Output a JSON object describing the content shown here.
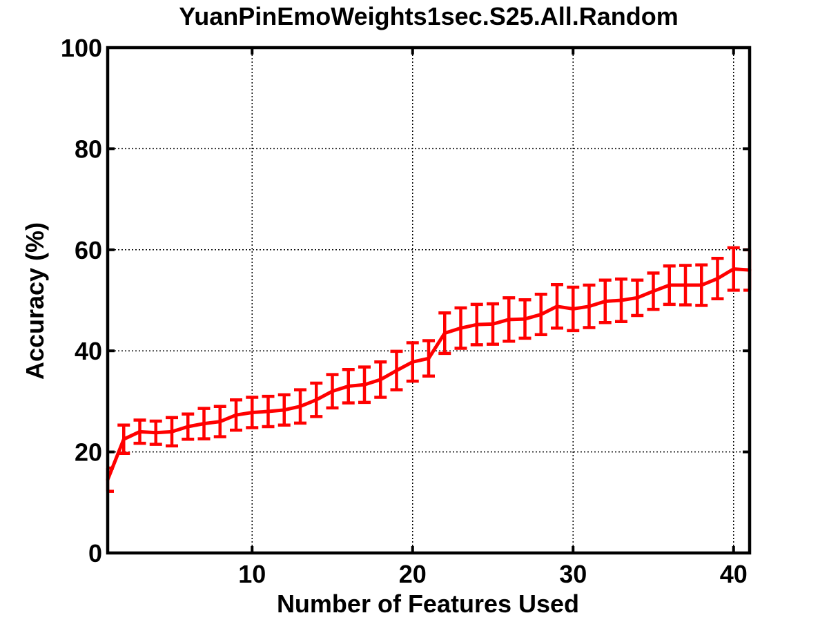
{
  "chart_data": {
    "type": "line",
    "title": "YuanPinEmoWeights1sec.S25.All.Random",
    "xlabel": "Number of Features Used",
    "ylabel": "Accuracy (%)",
    "xlim": [
      1,
      41
    ],
    "ylim": [
      0,
      100
    ],
    "x_ticks": [
      10,
      20,
      30,
      40
    ],
    "y_ticks": [
      0,
      20,
      40,
      60,
      80,
      100
    ],
    "x_tick_labels": [
      "10",
      "20",
      "30",
      "40"
    ],
    "y_tick_labels": [
      "0",
      "20",
      "40",
      "60",
      "80",
      "100"
    ],
    "grid": true,
    "grid_style": "dotted",
    "legend": "none",
    "series": [
      {
        "color": "#ff0000",
        "x": [
          1,
          2,
          3,
          4,
          5,
          6,
          7,
          8,
          9,
          10,
          11,
          12,
          13,
          14,
          15,
          16,
          17,
          18,
          19,
          20,
          21,
          22,
          23,
          24,
          25,
          26,
          27,
          28,
          29,
          30,
          31,
          32,
          33,
          34,
          35,
          36,
          37,
          38,
          39,
          40,
          41
        ],
        "values": [
          14.5,
          22.5,
          24,
          23.8,
          24,
          25,
          25.6,
          26,
          27.3,
          27.8,
          28,
          28.3,
          29,
          30.3,
          32,
          33,
          33.3,
          34.3,
          36.1,
          37.8,
          38.5,
          43.5,
          44.5,
          45.2,
          45.3,
          46.2,
          46.3,
          47.2,
          48.8,
          48.3,
          48.8,
          49.8,
          50,
          50.5,
          51.8,
          53,
          53,
          53,
          54.3,
          56.2,
          56
        ],
        "err": [
          2.3,
          2.8,
          2.3,
          2.3,
          2.8,
          2.5,
          3,
          3,
          3,
          3,
          3,
          3,
          3.3,
          3.3,
          3.3,
          3.3,
          3.5,
          3.5,
          3.8,
          3.8,
          3.5,
          4,
          4,
          4,
          4,
          4.3,
          3.8,
          4,
          4.3,
          4.3,
          4.2,
          4.2,
          4.2,
          3.5,
          3.6,
          3.8,
          3.9,
          4,
          4,
          4.2,
          4
        ]
      }
    ]
  }
}
